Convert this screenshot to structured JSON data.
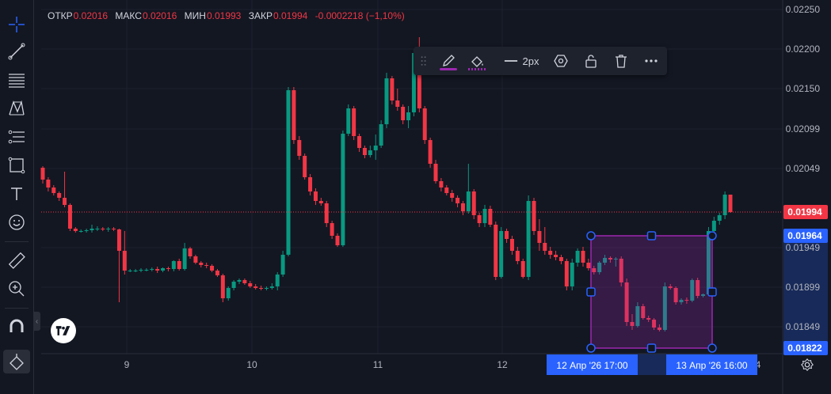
{
  "ohlc_legend": {
    "open_label": "ОТКР",
    "open_value": "0.02016",
    "high_label": "МАКС",
    "high_value": "0.02016",
    "low_label": "МИН",
    "low_value": "0.01993",
    "close_label": "ЗАКР",
    "close_value": "0.01994",
    "change": "-0.0002218 (−1,10%)"
  },
  "drawing_toolbar": {
    "line_width_label": "2px",
    "icons": [
      "drag-handle-icon",
      "pencil-icon",
      "fill-bucket-icon",
      "line-width-icon",
      "settings-hexagon-icon",
      "lock-icon",
      "trash-icon",
      "more-icon"
    ]
  },
  "left_toolbar": {
    "icons": [
      "crosshair-icon",
      "trend-line-icon",
      "fib-lines-icon",
      "pattern-icon",
      "forecast-icon",
      "rectangle-icon",
      "text-icon",
      "emoji-icon",
      "ruler-icon",
      "zoom-icon",
      "magnet-icon",
      "lock-draw-icon"
    ]
  },
  "colors": {
    "background": "#131722",
    "up": "#089981",
    "down": "#f23645",
    "selection": "#9c27b0",
    "handle": "#2962ff",
    "price_label_blue": "#2962ff",
    "price_label_red": "#f23645"
  },
  "chart_data": {
    "type": "candlestick",
    "y_axis": {
      "ylim": [
        0.01815,
        0.02262
      ],
      "ticks": [
        "0.02250",
        "0.02200",
        "0.02150",
        "0.02099",
        "0.02049",
        "0.01949",
        "0.01899",
        "0.01849"
      ]
    },
    "x_axis": {
      "ticks": [
        "9",
        "10",
        "11",
        "12",
        "4"
      ]
    },
    "current_price_label": "0.01994",
    "selection": {
      "top_price_label": "0.01964",
      "bottom_price_label": "0.01822",
      "start_time_label": "12 Апр '26   17:00",
      "end_time_label": "13 Апр '26   16:00"
    },
    "candles": [
      [
        0.0205,
        0.02052,
        0.0203,
        0.02035
      ],
      [
        0.02035,
        0.02038,
        0.0202,
        0.02025
      ],
      [
        0.02025,
        0.02028,
        0.02015,
        0.02018
      ],
      [
        0.02018,
        0.0202,
        0.02008,
        0.02012
      ],
      [
        0.02012,
        0.02045,
        0.02,
        0.02003
      ],
      [
        0.02003,
        0.02005,
        0.0197,
        0.01973
      ],
      [
        0.01973,
        0.01975,
        0.01968,
        0.0197
      ],
      [
        0.0197,
        0.01972,
        0.01968,
        0.0197
      ],
      [
        0.0197,
        0.01973,
        0.01968,
        0.01971
      ],
      [
        0.01971,
        0.01978,
        0.01968,
        0.01973
      ],
      [
        0.01973,
        0.01976,
        0.0197,
        0.01973
      ],
      [
        0.01973,
        0.01975,
        0.0197,
        0.01972
      ],
      [
        0.01972,
        0.01975,
        0.01969,
        0.01973
      ],
      [
        0.01973,
        0.01975,
        0.0197,
        0.01972
      ],
      [
        0.01972,
        0.01973,
        0.0188,
        0.01945
      ],
      [
        0.01945,
        0.0197,
        0.01915,
        0.0192
      ],
      [
        0.0192,
        0.01922,
        0.01918,
        0.0192
      ],
      [
        0.0192,
        0.01922,
        0.01918,
        0.0192
      ],
      [
        0.0192,
        0.01923,
        0.01918,
        0.01921
      ],
      [
        0.01921,
        0.01923,
        0.01919,
        0.01921
      ],
      [
        0.01921,
        0.01924,
        0.01919,
        0.01922
      ],
      [
        0.01922,
        0.01925,
        0.01917,
        0.0192
      ],
      [
        0.0192,
        0.01924,
        0.01918,
        0.01923
      ],
      [
        0.01923,
        0.01925,
        0.01919,
        0.01922
      ],
      [
        0.01922,
        0.01933,
        0.01919,
        0.01932
      ],
      [
        0.01932,
        0.01935,
        0.0192,
        0.01922
      ],
      [
        0.01922,
        0.01955,
        0.0192,
        0.01948
      ],
      [
        0.01948,
        0.0195,
        0.01935,
        0.01938
      ],
      [
        0.01938,
        0.0194,
        0.01928,
        0.0193
      ],
      [
        0.0193,
        0.01932,
        0.01924,
        0.01927
      ],
      [
        0.01927,
        0.0193,
        0.01923,
        0.01926
      ],
      [
        0.01926,
        0.01928,
        0.01918,
        0.0192
      ],
      [
        0.0192,
        0.01922,
        0.01912,
        0.01914
      ],
      [
        0.01914,
        0.01916,
        0.0188,
        0.01885
      ],
      [
        0.01885,
        0.019,
        0.01882,
        0.01898
      ],
      [
        0.01898,
        0.01908,
        0.01895,
        0.01906
      ],
      [
        0.01906,
        0.0191,
        0.01903,
        0.01908
      ],
      [
        0.01908,
        0.0191,
        0.01902,
        0.01904
      ],
      [
        0.01904,
        0.01907,
        0.01898,
        0.019
      ],
      [
        0.019,
        0.01903,
        0.01896,
        0.01898
      ],
      [
        0.01898,
        0.01901,
        0.01895,
        0.01897
      ],
      [
        0.01897,
        0.019,
        0.01895,
        0.01898
      ],
      [
        0.01898,
        0.01904,
        0.01896,
        0.019
      ],
      [
        0.019,
        0.01918,
        0.01895,
        0.01915
      ],
      [
        0.01915,
        0.01945,
        0.01912,
        0.0194
      ],
      [
        0.0194,
        0.02152,
        0.01938,
        0.02148
      ],
      [
        0.02148,
        0.02152,
        0.0208,
        0.02085
      ],
      [
        0.02085,
        0.0209,
        0.0206,
        0.02065
      ],
      [
        0.02065,
        0.02068,
        0.02035,
        0.02038
      ],
      [
        0.02038,
        0.02042,
        0.02015,
        0.0202
      ],
      [
        0.0202,
        0.02024,
        0.02003,
        0.02008
      ],
      [
        0.02008,
        0.02012,
        0.02002,
        0.02005
      ],
      [
        0.02005,
        0.02008,
        0.01975,
        0.0198
      ],
      [
        0.0198,
        0.01983,
        0.0196,
        0.01964
      ],
      [
        0.01964,
        0.01967,
        0.0195,
        0.01952
      ],
      [
        0.01952,
        0.02097,
        0.0195,
        0.02093
      ],
      [
        0.02093,
        0.0213,
        0.0209,
        0.02125
      ],
      [
        0.02125,
        0.02128,
        0.02085,
        0.0209
      ],
      [
        0.0209,
        0.02093,
        0.0207,
        0.02075
      ],
      [
        0.02075,
        0.02078,
        0.02062,
        0.02066
      ],
      [
        0.02066,
        0.02078,
        0.02063,
        0.02072
      ],
      [
        0.02072,
        0.02092,
        0.0206,
        0.02078
      ],
      [
        0.02078,
        0.0211,
        0.02075,
        0.02105
      ],
      [
        0.02105,
        0.0217,
        0.021,
        0.02163
      ],
      [
        0.02163,
        0.02166,
        0.0213,
        0.02135
      ],
      [
        0.02135,
        0.0215,
        0.02122,
        0.02127
      ],
      [
        0.02127,
        0.0213,
        0.02105,
        0.0211
      ],
      [
        0.0211,
        0.02128,
        0.021,
        0.0212
      ],
      [
        0.0212,
        0.022,
        0.02115,
        0.02195
      ],
      [
        0.02195,
        0.02215,
        0.0212,
        0.02125
      ],
      [
        0.02125,
        0.02128,
        0.0208,
        0.02085
      ],
      [
        0.02085,
        0.02088,
        0.0205,
        0.02055
      ],
      [
        0.02055,
        0.0206,
        0.0203,
        0.02033
      ],
      [
        0.02033,
        0.02037,
        0.0202,
        0.02025
      ],
      [
        0.02025,
        0.02028,
        0.02015,
        0.02018
      ],
      [
        0.02018,
        0.02022,
        0.02007,
        0.02012
      ],
      [
        0.02012,
        0.02015,
        0.02,
        0.02005
      ],
      [
        0.02005,
        0.02008,
        0.0199,
        0.01995
      ],
      [
        0.01995,
        0.02055,
        0.01992,
        0.0202
      ],
      [
        0.0202,
        0.02023,
        0.01985,
        0.0199
      ],
      [
        0.0199,
        0.01993,
        0.01975,
        0.0198
      ],
      [
        0.0198,
        0.02003,
        0.01975,
        0.01998
      ],
      [
        0.01998,
        0.02002,
        0.01975,
        0.01978
      ],
      [
        0.01978,
        0.01982,
        0.01908,
        0.01912
      ],
      [
        0.01912,
        0.01975,
        0.0191,
        0.0197
      ],
      [
        0.0197,
        0.01973,
        0.01955,
        0.0196
      ],
      [
        0.0196,
        0.01964,
        0.0194,
        0.01945
      ],
      [
        0.01945,
        0.0195,
        0.01928,
        0.01932
      ],
      [
        0.01932,
        0.01935,
        0.0191,
        0.01912
      ],
      [
        0.01912,
        0.02015,
        0.01908,
        0.02008
      ],
      [
        0.02008,
        0.02012,
        0.01965,
        0.0197
      ],
      [
        0.0197,
        0.01985,
        0.01945,
        0.01955
      ],
      [
        0.01955,
        0.01975,
        0.0194,
        0.01945
      ],
      [
        0.01945,
        0.0195,
        0.01935,
        0.0194
      ],
      [
        0.0194,
        0.01945,
        0.01933,
        0.01937
      ],
      [
        0.01937,
        0.0194,
        0.01928,
        0.01932
      ],
      [
        0.01932,
        0.01935,
        0.01895,
        0.019
      ],
      [
        0.019,
        0.01935,
        0.01895,
        0.0193
      ],
      [
        0.0193,
        0.01948,
        0.01925,
        0.01945
      ],
      [
        0.01945,
        0.0195,
        0.01925,
        0.0193
      ],
      [
        0.0193,
        0.01935,
        0.0192,
        0.01923
      ],
      [
        0.01923,
        0.01926,
        0.01915,
        0.01918
      ],
      [
        0.01918,
        0.01932,
        0.01915,
        0.0193
      ],
      [
        0.0193,
        0.0194,
        0.01927,
        0.01936
      ],
      [
        0.01936,
        0.01938,
        0.0193,
        0.01934
      ],
      [
        0.01934,
        0.01937,
        0.01925,
        0.01935
      ],
      [
        0.01935,
        0.01938,
        0.019,
        0.01905
      ],
      [
        0.01905,
        0.0191,
        0.0185,
        0.01855
      ],
      [
        0.01855,
        0.01865,
        0.01845,
        0.0185
      ],
      [
        0.0185,
        0.0188,
        0.01848,
        0.01875
      ],
      [
        0.01875,
        0.01878,
        0.01858,
        0.0186
      ],
      [
        0.0186,
        0.01863,
        0.01855,
        0.01858
      ],
      [
        0.01858,
        0.0186,
        0.01845,
        0.01848
      ],
      [
        0.01848,
        0.01852,
        0.01843,
        0.01845
      ],
      [
        0.01845,
        0.01905,
        0.01843,
        0.019
      ],
      [
        0.019,
        0.01903,
        0.01896,
        0.01898
      ],
      [
        0.01898,
        0.019,
        0.01877,
        0.0188
      ],
      [
        0.0188,
        0.01885,
        0.01877,
        0.01883
      ],
      [
        0.01883,
        0.01886,
        0.01878,
        0.01882
      ],
      [
        0.01882,
        0.0191,
        0.0188,
        0.01908
      ],
      [
        0.01908,
        0.01911,
        0.01885,
        0.01888
      ],
      [
        0.01888,
        0.01891,
        0.01886,
        0.0189
      ],
      [
        0.0189,
        0.01975,
        0.01888,
        0.0197
      ],
      [
        0.0197,
        0.01988,
        0.01965,
        0.01983
      ],
      [
        0.01983,
        0.01993,
        0.01978,
        0.0199
      ],
      [
        0.0199,
        0.0202,
        0.01985,
        0.02016
      ],
      [
        0.02016,
        0.02016,
        0.01993,
        0.01994
      ]
    ]
  }
}
